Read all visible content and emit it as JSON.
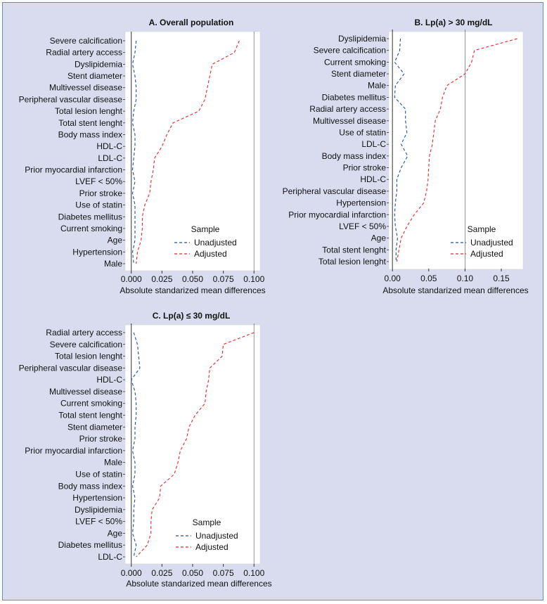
{
  "legend": {
    "title": "Sample",
    "items": [
      "Unadjusted",
      "Adjusted"
    ],
    "colors": [
      "#1f4fa0",
      "#e8272a"
    ]
  },
  "chart_data": [
    {
      "type": "line",
      "title": "A. Overall population",
      "xlabel": "Absolute standarized mean differences",
      "xlim": [
        -0.005,
        0.105
      ],
      "xticks": [
        0.0,
        0.025,
        0.05,
        0.075,
        0.1
      ],
      "xtick_labels": [
        "0.000",
        "0.025",
        "0.050",
        "0.075",
        "0.100"
      ],
      "vlines": [
        0.0,
        0.1
      ],
      "legend_position": "bottom-right",
      "categories": [
        "Severe calcification",
        "Radial artery access",
        "Dyslipidemia",
        "Stent diameter",
        "Multivessel disease",
        "Peripheral vascular disease",
        "Total lesion lenght",
        "Total stent lenght",
        "Body mass index",
        "HDL-C",
        "LDL-C",
        "Prior myocardial infarction",
        "LVEF < 50%",
        "Prior stroke",
        "Use of statin",
        "Diabetes mellitus",
        "Current smoking",
        "Age",
        "Hypertension",
        "Male"
      ],
      "series": [
        {
          "name": "Unadjusted",
          "values": [
            0.004,
            0.003,
            0.001,
            0.003,
            0.004,
            0.004,
            0.002,
            0.001,
            0.003,
            0.003,
            0.002,
            0.001,
            0.003,
            0.001,
            0.003,
            0.003,
            0.003,
            0.003,
            0.001,
            0.002
          ]
        },
        {
          "name": "Adjusted",
          "values": [
            0.088,
            0.084,
            0.066,
            0.064,
            0.062,
            0.06,
            0.055,
            0.034,
            0.029,
            0.025,
            0.019,
            0.018,
            0.016,
            0.015,
            0.011,
            0.009,
            0.009,
            0.008,
            0.005,
            0.004
          ]
        }
      ]
    },
    {
      "type": "line",
      "title": "B. Lp(a) > 30 mg/dL",
      "xlabel": "Absolute standarized mean differences",
      "xlim": [
        -0.005,
        0.18
      ],
      "xticks": [
        0.0,
        0.05,
        0.1,
        0.15
      ],
      "xtick_labels": [
        "0.00",
        "0.05",
        "0.10",
        "0.15"
      ],
      "vlines": [
        0.0,
        0.1
      ],
      "legend_position": "bottom-right",
      "categories": [
        "Dyslipidemia",
        "Severe calcification",
        "Current smoking",
        "Stent diameter",
        "Male",
        "Diabetes mellitus",
        "Radial artery access",
        "Multivessel disease",
        "Use of statin",
        "LDL-C",
        "Body mass index",
        "Prior stroke",
        "HDL-C",
        "Peripheral vascular disease",
        "Hypertension",
        "Prior myocardial infarction",
        "LVEF < 50%",
        "Age",
        "Total stent lenght",
        "Total lesion lenght"
      ],
      "series": [
        {
          "name": "Unadjusted",
          "values": [
            0.011,
            0.01,
            0.003,
            0.016,
            0.004,
            0.003,
            0.018,
            0.018,
            0.02,
            0.012,
            0.021,
            0.012,
            0.006,
            0.006,
            0.004,
            0.003,
            0.004,
            0.007,
            0.005,
            0.005
          ]
        },
        {
          "name": "Adjusted",
          "values": [
            0.172,
            0.113,
            0.109,
            0.1,
            0.075,
            0.069,
            0.066,
            0.059,
            0.057,
            0.055,
            0.051,
            0.05,
            0.049,
            0.047,
            0.043,
            0.03,
            0.02,
            0.012,
            0.009,
            0.006
          ]
        }
      ]
    },
    {
      "type": "line",
      "title": "C. Lp(a) ≤ 30 mg/dL",
      "xlabel": "Absolute standarized mean differences",
      "xlim": [
        -0.005,
        0.105
      ],
      "xticks": [
        0.0,
        0.025,
        0.05,
        0.075,
        0.1
      ],
      "xtick_labels": [
        "0.000",
        "0.025",
        "0.050",
        "0.075",
        "0.100"
      ],
      "vlines": [
        0.0,
        0.1
      ],
      "legend_position": "bottom-right",
      "categories": [
        "Radial artery access",
        "Severe calcification",
        "Total lesion lenght",
        "Peripheral vascular disease",
        "HDL-C",
        "Multivessel disease",
        "Current smoking",
        "Total stent lenght",
        "Stent diameter",
        "Prior stroke",
        "Prior myocardial infarction",
        "Male",
        "Use of statin",
        "Body mass index",
        "Hypertension",
        "Dyslipidemia",
        "LVEF < 50%",
        "Age",
        "Diabetes mellitus",
        "LDL-C"
      ],
      "series": [
        {
          "name": "Unadjusted",
          "values": [
            0.002,
            0.005,
            0.006,
            0.007,
            0.0,
            0.003,
            0.004,
            0.004,
            0.003,
            0.003,
            0.001,
            0.003,
            0.003,
            0.001,
            0.003,
            0.002,
            0.002,
            0.001,
            0.004,
            0.002
          ]
        },
        {
          "name": "Adjusted",
          "values": [
            0.1,
            0.075,
            0.074,
            0.064,
            0.063,
            0.061,
            0.06,
            0.052,
            0.047,
            0.045,
            0.04,
            0.038,
            0.035,
            0.024,
            0.023,
            0.017,
            0.016,
            0.016,
            0.013,
            0.004
          ]
        }
      ]
    }
  ]
}
